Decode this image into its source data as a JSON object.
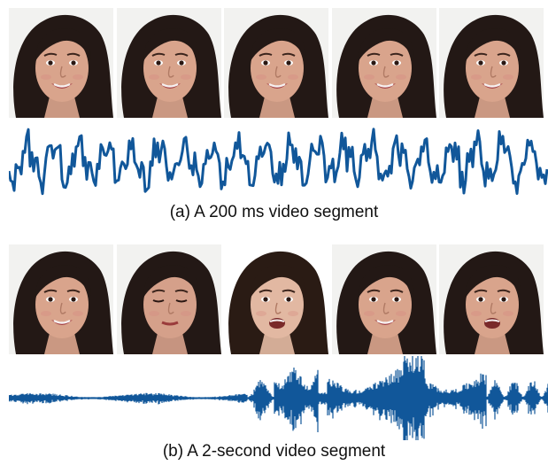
{
  "figure": {
    "panels": [
      {
        "caption": "(a) A 200 ms video segment",
        "frames": [
          {
            "expression": "smile",
            "background": "#f2f2f0",
            "hair": "#231815",
            "skin": "#d9a48c"
          },
          {
            "expression": "smile",
            "background": "#f2f2f0",
            "hair": "#231815",
            "skin": "#d9a48c"
          },
          {
            "expression": "smile",
            "background": "#f2f2f0",
            "hair": "#231815",
            "skin": "#d9a48c"
          },
          {
            "expression": "smile",
            "background": "#f2f2f0",
            "hair": "#231815",
            "skin": "#d9a48c"
          },
          {
            "expression": "smile",
            "background": "#f2f2f0",
            "hair": "#231815",
            "skin": "#d9a48c"
          }
        ],
        "waveform": {
          "color": "#11579a",
          "kind": "zoomed-in"
        }
      },
      {
        "caption": "(b) A 2-second video segment",
        "frames": [
          {
            "expression": "smile",
            "background": "#f2f2f0",
            "hair": "#231815",
            "skin": "#d9a48c"
          },
          {
            "expression": "eyes-closed",
            "background": "#f2f2f0",
            "hair": "#231815",
            "skin": "#d5a08a"
          },
          {
            "expression": "speaking",
            "background": "#ffffff",
            "hair": "#2a1b14",
            "skin": "#e2b8a2"
          },
          {
            "expression": "smile",
            "background": "#f2f2f0",
            "hair": "#231815",
            "skin": "#d9a48c"
          },
          {
            "expression": "speaking",
            "background": "#f2f2f0",
            "hair": "#231815",
            "skin": "#d9a48c"
          }
        ],
        "waveform": {
          "color": "#11579a",
          "kind": "full"
        }
      }
    ]
  }
}
